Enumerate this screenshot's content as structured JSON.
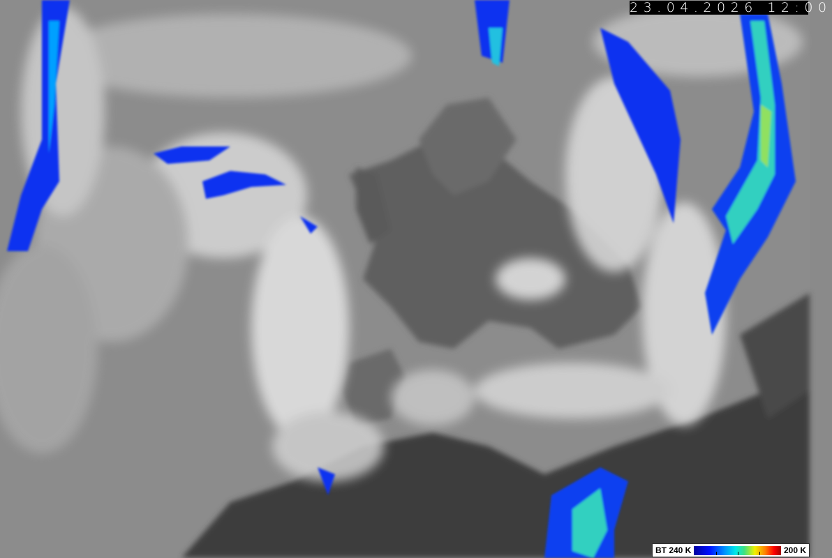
{
  "timestamp": "23.04.2026 12:00",
  "legend": {
    "min_label": "BT 240 K",
    "max_label": "200 K",
    "colors": [
      "#0000a0",
      "#0010ff",
      "#0090ff",
      "#00e8e8",
      "#40e080",
      "#f0f000",
      "#ff8000",
      "#ff0000",
      "#a00000"
    ]
  },
  "image": {
    "type": "infrared satellite image",
    "palette_background": "grayscale"
  }
}
